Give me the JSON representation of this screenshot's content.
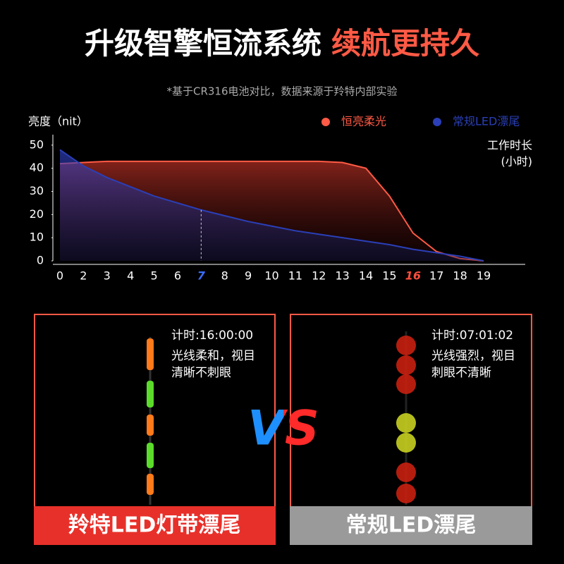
{
  "header": {
    "title_main": "升级智擎恒流系统",
    "title_accent": "续航更持久",
    "note": "*基于CR316电池对比，数据来源于羚特内部实验"
  },
  "chart_data": {
    "type": "line",
    "y_label": "亮度（nit）",
    "x_label": [
      "工作时长",
      "(小时)"
    ],
    "categories": [
      "0",
      "2",
      "3",
      "4",
      "5",
      "6",
      "7",
      "8",
      "9",
      "10",
      "11",
      "12",
      "13",
      "14",
      "15",
      "16",
      "17",
      "18",
      "19"
    ],
    "series": [
      {
        "name": "恒亮柔光",
        "color": "#ff5a45",
        "values": [
          42,
          42.5,
          43,
          43,
          43,
          43,
          43,
          43,
          43,
          43,
          43,
          43,
          42.5,
          40,
          28,
          12,
          4,
          1,
          0
        ]
      },
      {
        "name": "常规LED漂尾",
        "color": "#2a3fb8",
        "values": [
          48,
          41,
          36,
          32,
          28,
          25,
          22,
          19.5,
          17,
          15,
          13,
          11.5,
          10,
          8.5,
          7,
          5,
          3.5,
          2,
          0
        ]
      }
    ],
    "ylim": [
      0,
      53
    ],
    "yticks": [
      0,
      10,
      20,
      30,
      40,
      50
    ],
    "highlight_ticks": [
      {
        "index": 6,
        "color": "#3a6cff",
        "series": 1
      },
      {
        "index": 15,
        "color": "#ff4d3d",
        "series": 0
      }
    ]
  },
  "panels": [
    {
      "timer": "计时:16:00:00",
      "lines": [
        "光线柔和，视目",
        "清晰不刺眼"
      ],
      "label": "羚特LED灯带漂尾"
    },
    {
      "timer": "计时:07:01:02",
      "lines": [
        "光线强烈，视目",
        "刺眼不清晰"
      ],
      "label": "常规LED漂尾"
    }
  ],
  "vs": "VS"
}
